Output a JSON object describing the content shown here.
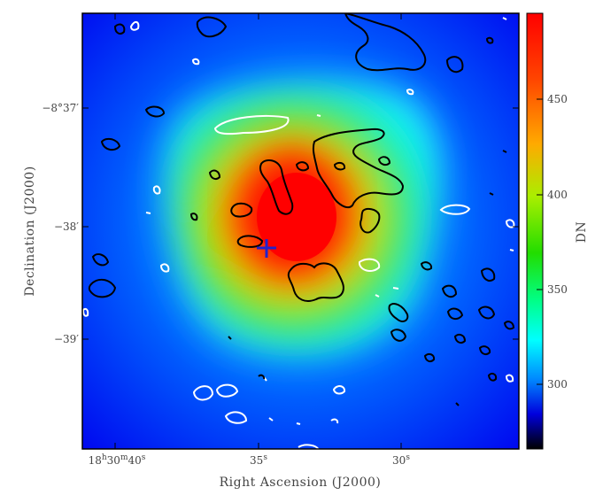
{
  "figure": {
    "x_axis_label": "Right Ascension (J2000)",
    "y_axis_label": "Declination (J2000)",
    "x_ticks": [
      {
        "main": "18",
        "sup1": "h",
        "mid": "30",
        "sup2": "m",
        "tail": "40",
        "sup3": "s"
      },
      {
        "main": "35",
        "sup1": "s"
      },
      {
        "main": "30",
        "sup1": "s"
      }
    ],
    "y_ticks": [
      "−8°37′",
      "−38′",
      "−39′"
    ],
    "colorbar": {
      "label": "DN",
      "ticks": [
        "450",
        "400",
        "350",
        "300"
      ],
      "colors": {
        "high": "#ff0000",
        "mid_high": "#ffcc00",
        "mid": "#33dd00",
        "mid_low": "#00ffff",
        "low": "#0000dd",
        "floor": "#000000"
      }
    },
    "marker": {
      "symbol": "plus",
      "color": "#2222cc"
    },
    "contour_colors": {
      "positive": "#000000",
      "negative": "#ffffff"
    }
  }
}
